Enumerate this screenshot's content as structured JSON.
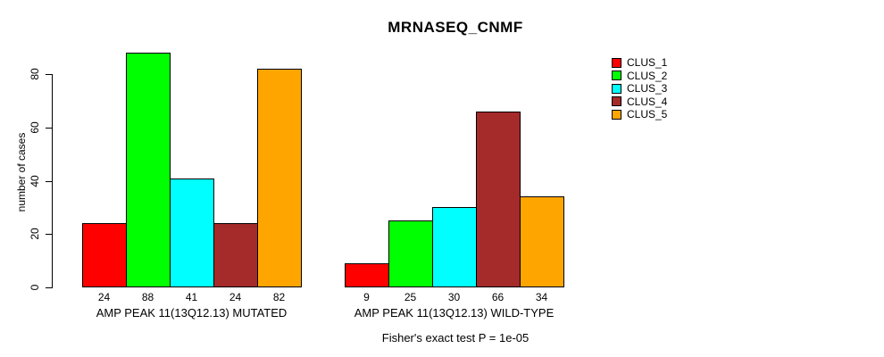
{
  "chart_data": {
    "type": "bar",
    "title": "MRNASEQ_CNMF",
    "xlabel": "",
    "ylabel": "number of cases",
    "ylim": [
      0,
      80
    ],
    "yticks": [
      0,
      20,
      40,
      60,
      80
    ],
    "grid": false,
    "legend_position": "right",
    "series": [
      {
        "name": "CLUS_1",
        "color": "#FF0000",
        "values": [
          24,
          9
        ]
      },
      {
        "name": "CLUS_2",
        "color": "#00FF00",
        "values": [
          88,
          25
        ]
      },
      {
        "name": "CLUS_3",
        "color": "#00FFFF",
        "values": [
          41,
          30
        ]
      },
      {
        "name": "CLUS_4",
        "color": "#A52A2A",
        "values": [
          24,
          66
        ]
      },
      {
        "name": "CLUS_5",
        "color": "#FFA500",
        "values": [
          82,
          34
        ]
      }
    ],
    "categories": [
      "AMP PEAK 11(13Q12.13) MUTATED",
      "AMP PEAK 11(13Q12.13) WILD-TYPE"
    ],
    "bar_value_labels": [
      [
        24,
        88,
        41,
        24,
        82
      ],
      [
        9,
        25,
        30,
        66,
        34
      ]
    ],
    "annotation": "Fisher's exact test P = 1e-05"
  },
  "colors": {
    "background": "#FFFFFF",
    "axis": "#000000",
    "text": "#000000"
  }
}
